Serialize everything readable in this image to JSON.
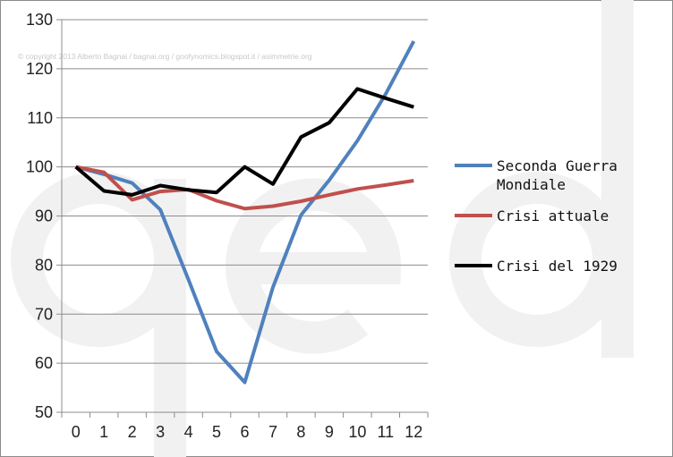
{
  "copyright": "© copyright 2013 Alberto Bagnai / bagnai.org / goofynomics.blogspot.it / asimmetrie.org",
  "watermark_text": "qed",
  "chart_data": {
    "type": "line",
    "title": "",
    "xlabel": "",
    "ylabel": "",
    "x": [
      0,
      1,
      2,
      3,
      4,
      5,
      6,
      7,
      8,
      9,
      10,
      11,
      12
    ],
    "ylim": [
      50,
      130
    ],
    "yticks": [
      50,
      60,
      70,
      80,
      90,
      100,
      110,
      120,
      130
    ],
    "grid": "horizontal",
    "legend_position": "right",
    "series": [
      {
        "name": "Seconda Guerra Mondiale",
        "color": "#4f81bd",
        "values": [
          100,
          98.5,
          96.7,
          91.3,
          77,
          62.4,
          56.1,
          75.5,
          90.2,
          97.3,
          105.3,
          114.8,
          125.6
        ]
      },
      {
        "name": "Crisi attuale",
        "color": "#c0504d",
        "values": [
          100,
          98.9,
          93.3,
          95,
          95.4,
          93.1,
          91.5,
          92,
          93,
          94.3,
          95.5,
          96.3,
          97.2
        ]
      },
      {
        "name": "Crisi del 1929",
        "color": "#000000",
        "values": [
          100,
          95.1,
          94.3,
          96.2,
          95.3,
          94.8,
          100,
          96.5,
          106.1,
          109,
          115.9,
          114,
          112.2
        ]
      }
    ]
  }
}
